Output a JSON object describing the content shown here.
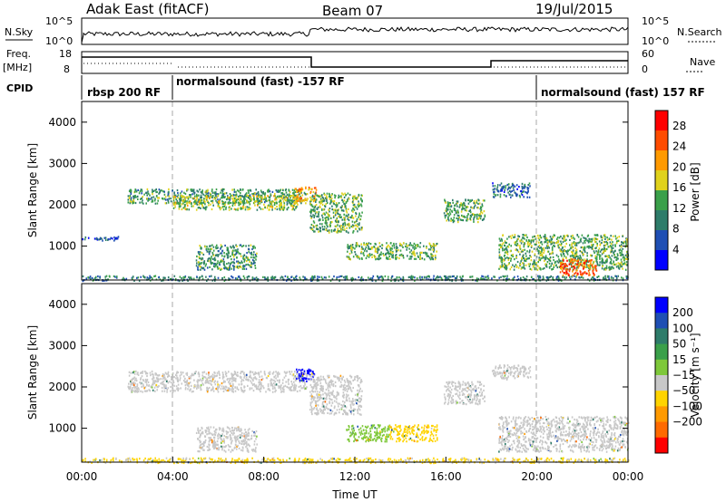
{
  "header": {
    "station": "Adak East (fitACF)",
    "beam": "Beam 07",
    "date": "19/Jul/2015"
  },
  "panels": {
    "nsky_label": "N.Sky",
    "nsky_ticks": [
      "10^5",
      "10^0"
    ],
    "nsearch_label": "N.Search",
    "nsearch_ticks": [
      "10^5",
      "10^0"
    ],
    "freq_label_1": "Freq.",
    "freq_label_2": "[MHz]",
    "freq_ticks": [
      "18",
      "8"
    ],
    "nave_label": "Nave",
    "nave_ticks": [
      "60",
      "0"
    ],
    "cpid_label": "CPID",
    "cpid_segments": [
      {
        "label": "rbsp 200 RF",
        "start": 0.0,
        "end": 4.0
      },
      {
        "label": "normalsound (fast) -157 RF",
        "start": 4.0,
        "end": 20.0
      },
      {
        "label": "normalsound (fast) 157 RF",
        "start": 20.0,
        "end": 24.0
      }
    ]
  },
  "chart_data": [
    {
      "type": "heatmap",
      "title": "Power",
      "ylabel": "Slant Range [km]",
      "xlabel": "",
      "xlim": [
        0,
        24
      ],
      "ylim": [
        180,
        4500
      ],
      "yticks": [
        1000,
        2000,
        3000,
        4000
      ],
      "colorbar": {
        "label": "Power [dB]",
        "ticks": [
          4,
          8,
          12,
          16,
          20,
          24,
          28
        ],
        "range": [
          0,
          31
        ],
        "colors": [
          "#0000ff",
          "#1f4fb4",
          "#2e7c6a",
          "#3aa04a",
          "#e0d21c",
          "#ff9a00",
          "#ff4c00",
          "#ff0000"
        ]
      },
      "echo_regions": [
        {
          "t0": 2.0,
          "t1": 9.9,
          "r0": 2050,
          "r1": 2400,
          "level": 12
        },
        {
          "t0": 4.0,
          "t1": 9.5,
          "r0": 1900,
          "r1": 2250,
          "level": 16
        },
        {
          "t0": 9.3,
          "t1": 10.3,
          "r0": 2100,
          "r1": 2450,
          "level": 22
        },
        {
          "t0": 10.0,
          "t1": 12.3,
          "r0": 1350,
          "r1": 2300,
          "level": 14
        },
        {
          "t0": 5.0,
          "t1": 7.7,
          "r0": 450,
          "r1": 1050,
          "level": 12
        },
        {
          "t0": 11.6,
          "t1": 15.6,
          "r0": 700,
          "r1": 1100,
          "level": 14
        },
        {
          "t0": 15.9,
          "t1": 17.7,
          "r0": 1600,
          "r1": 2150,
          "level": 14
        },
        {
          "t0": 18.0,
          "t1": 19.7,
          "r0": 2200,
          "r1": 2550,
          "level": 8
        },
        {
          "t0": 18.3,
          "t1": 24.0,
          "r0": 450,
          "r1": 1300,
          "level": 14
        },
        {
          "t0": 21.0,
          "t1": 22.6,
          "r0": 300,
          "r1": 700,
          "level": 26
        },
        {
          "t0": 0.0,
          "t1": 24.0,
          "r0": 180,
          "r1": 300,
          "level": 10
        },
        {
          "t0": 0.0,
          "t1": 1.6,
          "r0": 1150,
          "r1": 1250,
          "level": 6
        }
      ]
    },
    {
      "type": "heatmap",
      "title": "Velocity",
      "ylabel": "Slant Range [km]",
      "xlabel": "Time UT",
      "xlim": [
        0,
        24
      ],
      "ylim": [
        180,
        4500
      ],
      "yticks": [
        1000,
        2000,
        3000,
        4000
      ],
      "xticks": [
        "00:00",
        "04:00",
        "08:00",
        "12:00",
        "16:00",
        "20:00",
        "00:00"
      ],
      "colorbar": {
        "label": "Velocity [m s⁻¹]",
        "ticks": [
          200,
          100,
          50,
          15,
          -15,
          -50,
          -100,
          -200
        ],
        "colors": [
          "#0000ff",
          "#1f4fb4",
          "#2e7c6a",
          "#3aa04a",
          "#7ec83a",
          "#c8c8c8",
          "#ffd400",
          "#ff9a00",
          "#ff6a00",
          "#ff0000"
        ]
      },
      "echo_regions": [
        {
          "t0": 2.0,
          "t1": 9.9,
          "r0": 1900,
          "r1": 2400,
          "velocity": 0
        },
        {
          "t0": 9.4,
          "t1": 10.2,
          "r0": 2150,
          "r1": 2450,
          "velocity": 230
        },
        {
          "t0": 10.0,
          "t1": 12.3,
          "r0": 1350,
          "r1": 2300,
          "velocity": 0
        },
        {
          "t0": 5.0,
          "t1": 7.7,
          "r0": 450,
          "r1": 1050,
          "velocity": 0
        },
        {
          "t0": 11.6,
          "t1": 13.5,
          "r0": 700,
          "r1": 1100,
          "velocity": 40
        },
        {
          "t0": 13.5,
          "t1": 15.6,
          "r0": 700,
          "r1": 1100,
          "velocity": -30
        },
        {
          "t0": 15.9,
          "t1": 17.7,
          "r0": 1600,
          "r1": 2150,
          "velocity": 0
        },
        {
          "t0": 18.0,
          "t1": 19.7,
          "r0": 2200,
          "r1": 2550,
          "velocity": 0
        },
        {
          "t0": 18.3,
          "t1": 24.0,
          "r0": 450,
          "r1": 1300,
          "velocity": 0
        },
        {
          "t0": 0.0,
          "t1": 24.0,
          "r0": 180,
          "r1": 300,
          "velocity": -20
        }
      ]
    }
  ]
}
